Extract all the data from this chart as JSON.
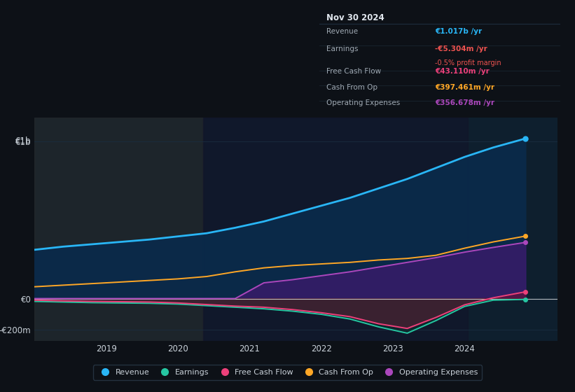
{
  "bg_color": "#0d1117",
  "plot_bg_color": "#0e1f2e",
  "grid_color": "#1e2d3d",
  "text_color": "#c9d1d9",
  "x": [
    2018.0,
    2018.4,
    2018.8,
    2019.2,
    2019.6,
    2020.0,
    2020.4,
    2020.8,
    2021.2,
    2021.6,
    2022.0,
    2022.4,
    2022.8,
    2023.2,
    2023.6,
    2024.0,
    2024.4,
    2024.85
  ],
  "revenue": [
    310,
    330,
    345,
    360,
    375,
    395,
    415,
    450,
    490,
    540,
    590,
    640,
    700,
    760,
    830,
    900,
    960,
    1017
  ],
  "earnings": [
    -18,
    -22,
    -26,
    -28,
    -30,
    -35,
    -45,
    -55,
    -65,
    -80,
    -100,
    -130,
    -180,
    -220,
    -140,
    -50,
    -10,
    -5.3
  ],
  "fcf": [
    -10,
    -15,
    -18,
    -20,
    -22,
    -28,
    -38,
    -48,
    -55,
    -70,
    -90,
    -115,
    -160,
    -190,
    -120,
    -40,
    5,
    43
  ],
  "cash_from_op": [
    75,
    85,
    95,
    105,
    115,
    125,
    140,
    170,
    195,
    210,
    220,
    230,
    245,
    255,
    275,
    320,
    360,
    397
  ],
  "op_expenses": [
    0,
    0,
    0,
    0,
    0,
    0,
    0,
    0,
    100,
    120,
    145,
    170,
    200,
    230,
    260,
    295,
    325,
    357
  ],
  "revenue_color": "#29b6f6",
  "earnings_color": "#26c6a2",
  "fcf_color": "#ec407a",
  "cash_from_op_color": "#ffa726",
  "op_expenses_color": "#ab47bc",
  "ylim": [
    -270,
    1150
  ],
  "yticks": [
    -200,
    0,
    1000
  ],
  "ytick_labels": [
    "-€200m",
    "€0",
    "€1b"
  ],
  "xlim": [
    2018.0,
    2025.3
  ],
  "xticks": [
    2019,
    2020,
    2021,
    2022,
    2023,
    2024
  ],
  "shade_left_end": 2020.35,
  "shade_mid_end": 2024.05,
  "info_box": {
    "date": "Nov 30 2024",
    "rows": [
      {
        "label": "Revenue",
        "value": "€1.017b /yr",
        "value_color": "#29b6f6",
        "sub": null
      },
      {
        "label": "Earnings",
        "value": "-€5.304m /yr",
        "value_color": "#ef5350",
        "sub": "-0.5% profit margin",
        "sub_color": "#ef5350"
      },
      {
        "label": "Free Cash Flow",
        "value": "€43.110m /yr",
        "value_color": "#ec407a",
        "sub": null
      },
      {
        "label": "Cash From Op",
        "value": "€397.461m /yr",
        "value_color": "#ffa726",
        "sub": null
      },
      {
        "label": "Operating Expenses",
        "value": "€356.678m /yr",
        "value_color": "#ab47bc",
        "sub": null
      }
    ],
    "bg_color": "#080c10",
    "text_color": "#a0aab4",
    "title_color": "#e0e6ed"
  },
  "legend": [
    {
      "label": "Revenue",
      "color": "#29b6f6"
    },
    {
      "label": "Earnings",
      "color": "#26c6a2"
    },
    {
      "label": "Free Cash Flow",
      "color": "#ec407a"
    },
    {
      "label": "Cash From Op",
      "color": "#ffa726"
    },
    {
      "label": "Operating Expenses",
      "color": "#ab47bc"
    }
  ]
}
